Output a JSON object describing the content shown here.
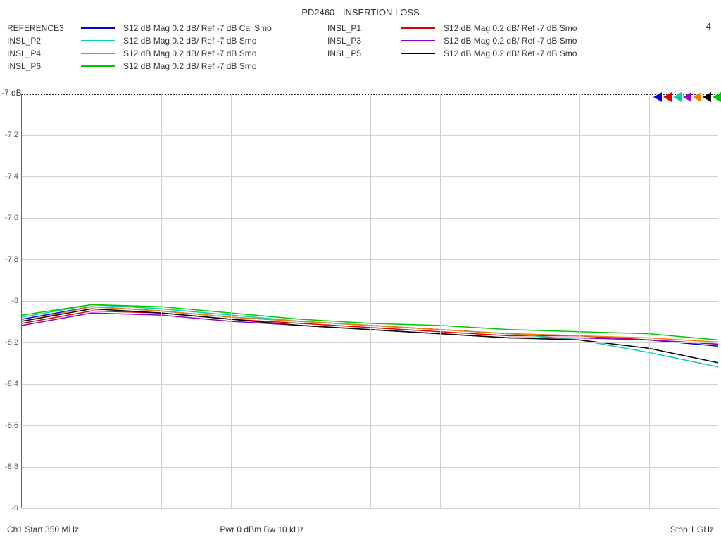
{
  "title": "PD2460 - INSERTION LOSS",
  "top_right_badge": "4",
  "legend": {
    "rows": [
      [
        {
          "name": "REFERENCE3",
          "color": "#0000e0",
          "desc": "S12  dB Mag  0.2 dB/ Ref -7 dB  Cal Smo"
        },
        {
          "name": "INSL_P1",
          "color": "#e00000",
          "desc": "S12  dB Mag  0.2 dB/ Ref -7 dB  Smo"
        }
      ],
      [
        {
          "name": "INSL_P2",
          "color": "#00d0b0",
          "desc": "S12  dB Mag  0.2 dB/ Ref -7 dB  Smo"
        },
        {
          "name": "INSL_P3",
          "color": "#9000d0",
          "desc": "S12  dB Mag  0.2 dB/ Ref -7 dB  Smo"
        }
      ],
      [
        {
          "name": "INSL_P4",
          "color": "#f08000",
          "desc": "S12  dB Mag  0.2 dB/ Ref -7 dB  Smo"
        },
        {
          "name": "INSL_P5",
          "color": "#000000",
          "desc": "S12  dB Mag  0.2 dB/ Ref -7 dB  Smo"
        }
      ],
      [
        {
          "name": "INSL_P6",
          "color": "#00c800",
          "desc": "S12  dB Mag  0.2 dB/ Ref -7 dB  Smo"
        }
      ]
    ]
  },
  "ref_label": "-7 dB",
  "chart": {
    "type": "line",
    "background_color": "#ffffff",
    "grid_color": "#d0d0d0",
    "axis_color": "#666666",
    "ylim_top": -7.0,
    "ylim_bottom": -9.0,
    "ytick_step": 0.2,
    "yticks": [
      "-7.2",
      "-7.4",
      "-7.6",
      "-7.8",
      "-8",
      "-8.2",
      "-8.4",
      "-8.6",
      "-8.8",
      "-9"
    ],
    "x_points": [
      0.0,
      0.1,
      0.2,
      0.3,
      0.4,
      0.5,
      0.6,
      0.7,
      0.8,
      0.9,
      1.0
    ],
    "series": [
      {
        "name": "REFERENCE3",
        "color": "#0000e0",
        "width": 1.5,
        "y": [
          -8.09,
          -8.03,
          -8.05,
          -8.08,
          -8.1,
          -8.12,
          -8.14,
          -8.16,
          -8.17,
          -8.19,
          -8.22
        ]
      },
      {
        "name": "INSL_P1",
        "color": "#e00000",
        "width": 1.5,
        "y": [
          -8.11,
          -8.05,
          -8.06,
          -8.09,
          -8.11,
          -8.13,
          -8.15,
          -8.17,
          -8.17,
          -8.19,
          -8.21
        ]
      },
      {
        "name": "INSL_P2",
        "color": "#00d0b0",
        "width": 1.5,
        "y": [
          -8.08,
          -8.02,
          -8.04,
          -8.07,
          -8.1,
          -8.12,
          -8.14,
          -8.16,
          -8.19,
          -8.25,
          -8.32
        ]
      },
      {
        "name": "INSL_P3",
        "color": "#9000d0",
        "width": 1.5,
        "y": [
          -8.12,
          -8.06,
          -8.07,
          -8.1,
          -8.12,
          -8.14,
          -8.16,
          -8.18,
          -8.18,
          -8.19,
          -8.21
        ]
      },
      {
        "name": "INSL_P4",
        "color": "#f08000",
        "width": 1.5,
        "y": [
          -8.1,
          -8.03,
          -8.05,
          -8.08,
          -8.1,
          -8.12,
          -8.14,
          -8.16,
          -8.17,
          -8.18,
          -8.2
        ]
      },
      {
        "name": "INSL_P5",
        "color": "#000000",
        "width": 1.5,
        "y": [
          -8.1,
          -8.04,
          -8.06,
          -8.09,
          -8.12,
          -8.14,
          -8.16,
          -8.18,
          -8.19,
          -8.23,
          -8.3
        ]
      },
      {
        "name": "INSL_P6",
        "color": "#00c800",
        "width": 1.5,
        "y": [
          -8.07,
          -8.02,
          -8.03,
          -8.06,
          -8.09,
          -8.11,
          -8.12,
          -8.14,
          -8.15,
          -8.16,
          -8.19
        ]
      }
    ],
    "marker_colors": [
      "#0000e0",
      "#e00000",
      "#00d0b0",
      "#9000d0",
      "#f08000",
      "#000000",
      "#00c800"
    ]
  },
  "footer": {
    "left": "Ch1  Start  350 MHz",
    "center": "Pwr  0 dBm  Bw   10 kHz",
    "right": "Stop  1 GHz"
  }
}
